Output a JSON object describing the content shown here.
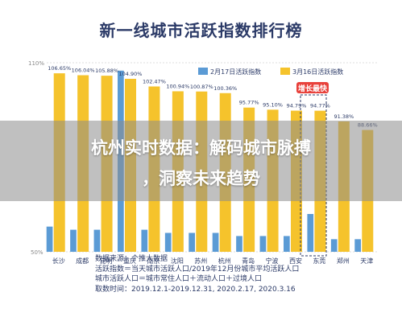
{
  "title": "新一线城市活跃指数排行榜",
  "overlay": {
    "line1": "杭州实时数据：解码城市脉搏",
    "line2": "，洞察未来趋势"
  },
  "legend": {
    "feb": "2月17日活跃指数",
    "mar": "3月16日活跃指数"
  },
  "callout": "增长最快",
  "colors": {
    "feb": "#5b9bd5",
    "mar": "#f5c32c",
    "text": "#2b3a67",
    "callout": "#e8413b"
  },
  "footnote": [
    "数据来源：个推大数据",
    "活跃指数＝当天城市活跃人口/2019年12月份城市平均活跃人口",
    "城市活跃人口＝城市常住人口＋流动人口＋过境人口",
    "取数时间：2019.12.1-2019.12.31, 2020.2.17, 2020.3.16"
  ],
  "chart_data": {
    "type": "bar",
    "title": "新一线城市活跃指数排行榜",
    "categories": [
      "长沙",
      "成都",
      "昆明",
      "重庆",
      "南京",
      "沈阳",
      "苏州",
      "杭州",
      "青岛",
      "宁波",
      "西安",
      "东莞",
      "郑州",
      "天津"
    ],
    "ylim": [
      50,
      110
    ],
    "yticks": [
      "110%",
      "50%"
    ],
    "series": [
      {
        "name": "2月17日活跃指数",
        "values": [
          58,
          57,
          57,
          107.5,
          57,
          56,
          56,
          56,
          55,
          55,
          55,
          62,
          54,
          54
        ],
        "labels": [
          "",
          "",
          "",
          "",
          "",
          "",
          "",
          "",
          "",
          "",
          "",
          "",
          "",
          ""
        ]
      },
      {
        "name": "3月16日活跃指数",
        "values": [
          106.65,
          106.04,
          105.88,
          104.9,
          102.47,
          100.94,
          100.87,
          100.36,
          95.77,
          95.1,
          94.79,
          94.77,
          91.38,
          88.66
        ],
        "labels": [
          "106.65%",
          "106.04%",
          "105.88%",
          "104.90%",
          "102.47%",
          "100.94%",
          "100.87%",
          "100.36%",
          "95.77%",
          "95.10%",
          "94.79%",
          "94.77%",
          "91.38%",
          "88.66%"
        ]
      }
    ],
    "legend_position": "top-right",
    "grid": true
  }
}
